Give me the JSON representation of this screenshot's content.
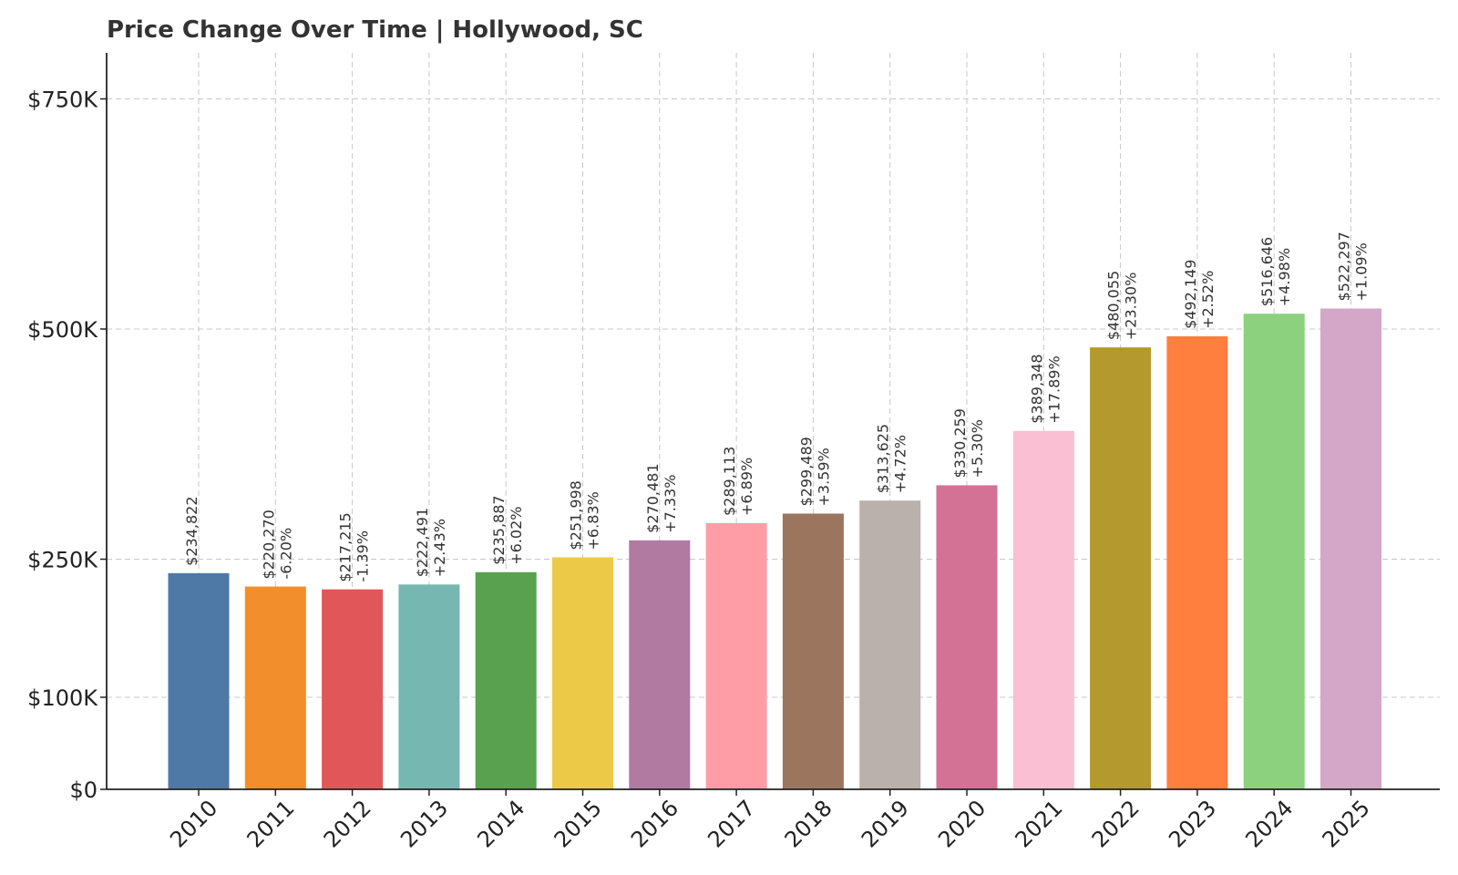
{
  "chart_data": {
    "type": "bar",
    "title": "Price Change Over Time | Hollywood, SC",
    "xlabel": "",
    "ylabel": "",
    "categories": [
      "2010",
      "2011",
      "2012",
      "2013",
      "2014",
      "2015",
      "2016",
      "2017",
      "2018",
      "2019",
      "2020",
      "2021",
      "2022",
      "2023",
      "2024",
      "2025"
    ],
    "values": [
      234822,
      220270,
      217215,
      222491,
      235887,
      251998,
      270481,
      289113,
      299489,
      313625,
      330259,
      389348,
      480055,
      492149,
      516646,
      522297
    ],
    "value_labels": [
      "$234,822",
      "$220,270",
      "$217,215",
      "$222,491",
      "$235,887",
      "$251,998",
      "$270,481",
      "$289,113",
      "$299,489",
      "$313,625",
      "$330,259",
      "$389,348",
      "$480,055",
      "$492,149",
      "$516,646",
      "$522,297"
    ],
    "change_labels": [
      "",
      "-6.20%",
      "-1.39%",
      "+2.43%",
      "+6.02%",
      "+6.83%",
      "+7.33%",
      "+6.89%",
      "+3.59%",
      "+4.72%",
      "+5.30%",
      "+17.89%",
      "+23.30%",
      "+2.52%",
      "+4.98%",
      "+1.09%"
    ],
    "colors": [
      "#4e79a7",
      "#f28e2b",
      "#e15759",
      "#76b7b2",
      "#59a14f",
      "#edc948",
      "#b07aa1",
      "#ff9da7",
      "#9c755f",
      "#bab0ac",
      "#d37295",
      "#fabfd2",
      "#b3992e",
      "#ff7f3f",
      "#8cd17d",
      "#d4a6c8"
    ],
    "yticks": [
      0,
      100000,
      250000,
      500000,
      750000
    ],
    "ytick_labels": [
      "$0",
      "$100K",
      "$250K",
      "$500K",
      "$750K"
    ],
    "ylim": [
      0,
      800000
    ],
    "grid": true,
    "grid_style": "dashed"
  }
}
